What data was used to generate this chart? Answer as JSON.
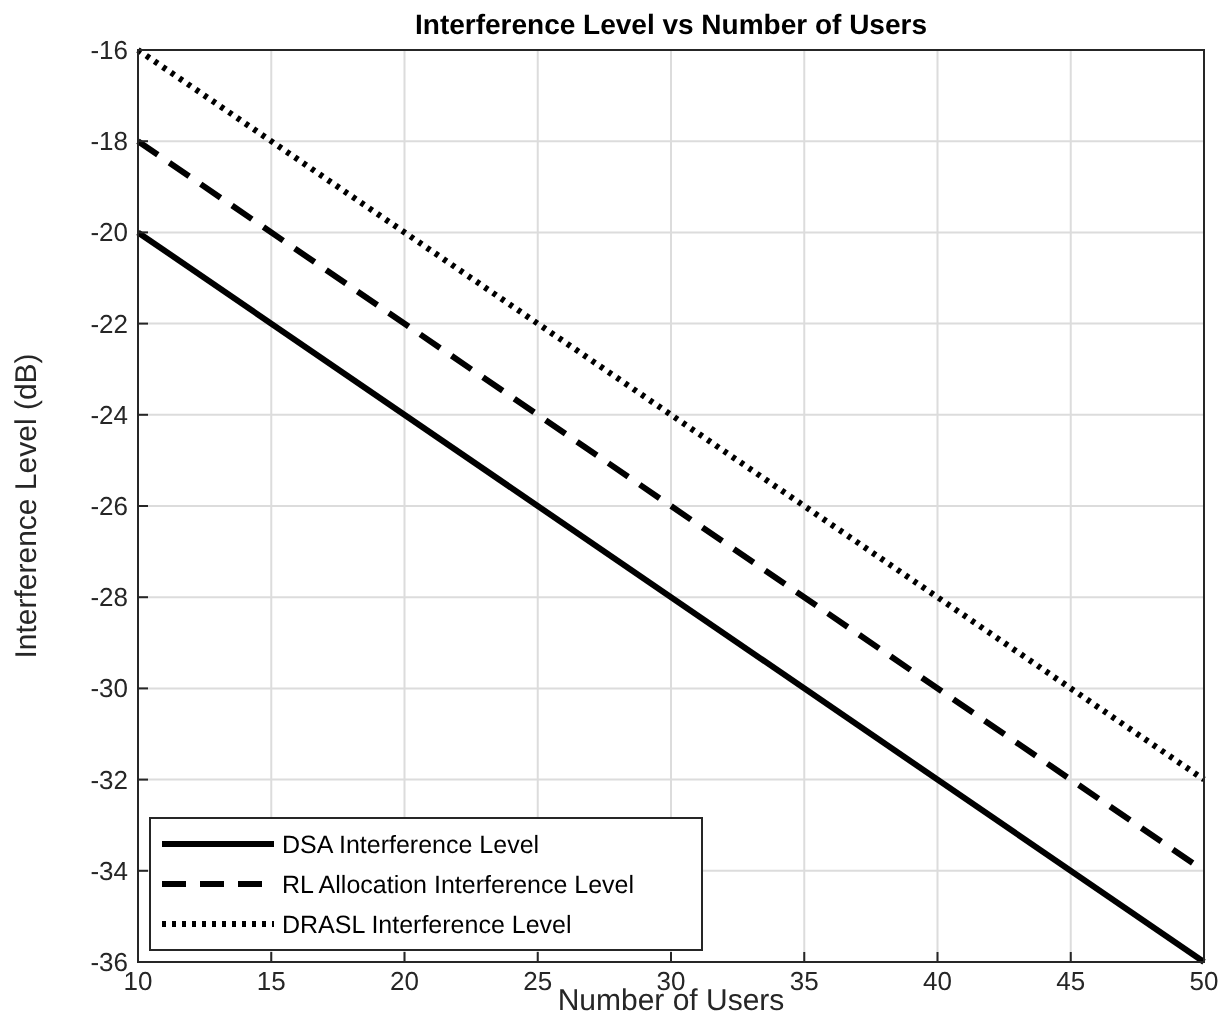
{
  "chart_data": {
    "type": "line",
    "title": "Interference Level vs Number of Users",
    "xlabel": "Number of Users",
    "ylabel": "Interference Level (dB)",
    "x": [
      10,
      50
    ],
    "series": [
      {
        "name": "DSA Interference Level",
        "color": "#000000",
        "line_style": "solid",
        "values": [
          -20,
          -36
        ]
      },
      {
        "name": "RL Allocation Interference Level",
        "color": "#000000",
        "line_style": "dashed",
        "values": [
          -18,
          -34
        ]
      },
      {
        "name": "DRASL Interference Level",
        "color": "#000000",
        "line_style": "dotted",
        "values": [
          -16,
          -32
        ]
      }
    ],
    "xlim": [
      10,
      50
    ],
    "xticks": [
      10,
      15,
      20,
      25,
      30,
      35,
      40,
      45,
      50
    ],
    "ylim": [
      -36,
      -16
    ],
    "yticks": [
      -36,
      -34,
      -32,
      -30,
      -28,
      -26,
      -24,
      -22,
      -20,
      -18,
      -16
    ],
    "grid": true,
    "legend": "bottom left",
    "marker": "none"
  }
}
